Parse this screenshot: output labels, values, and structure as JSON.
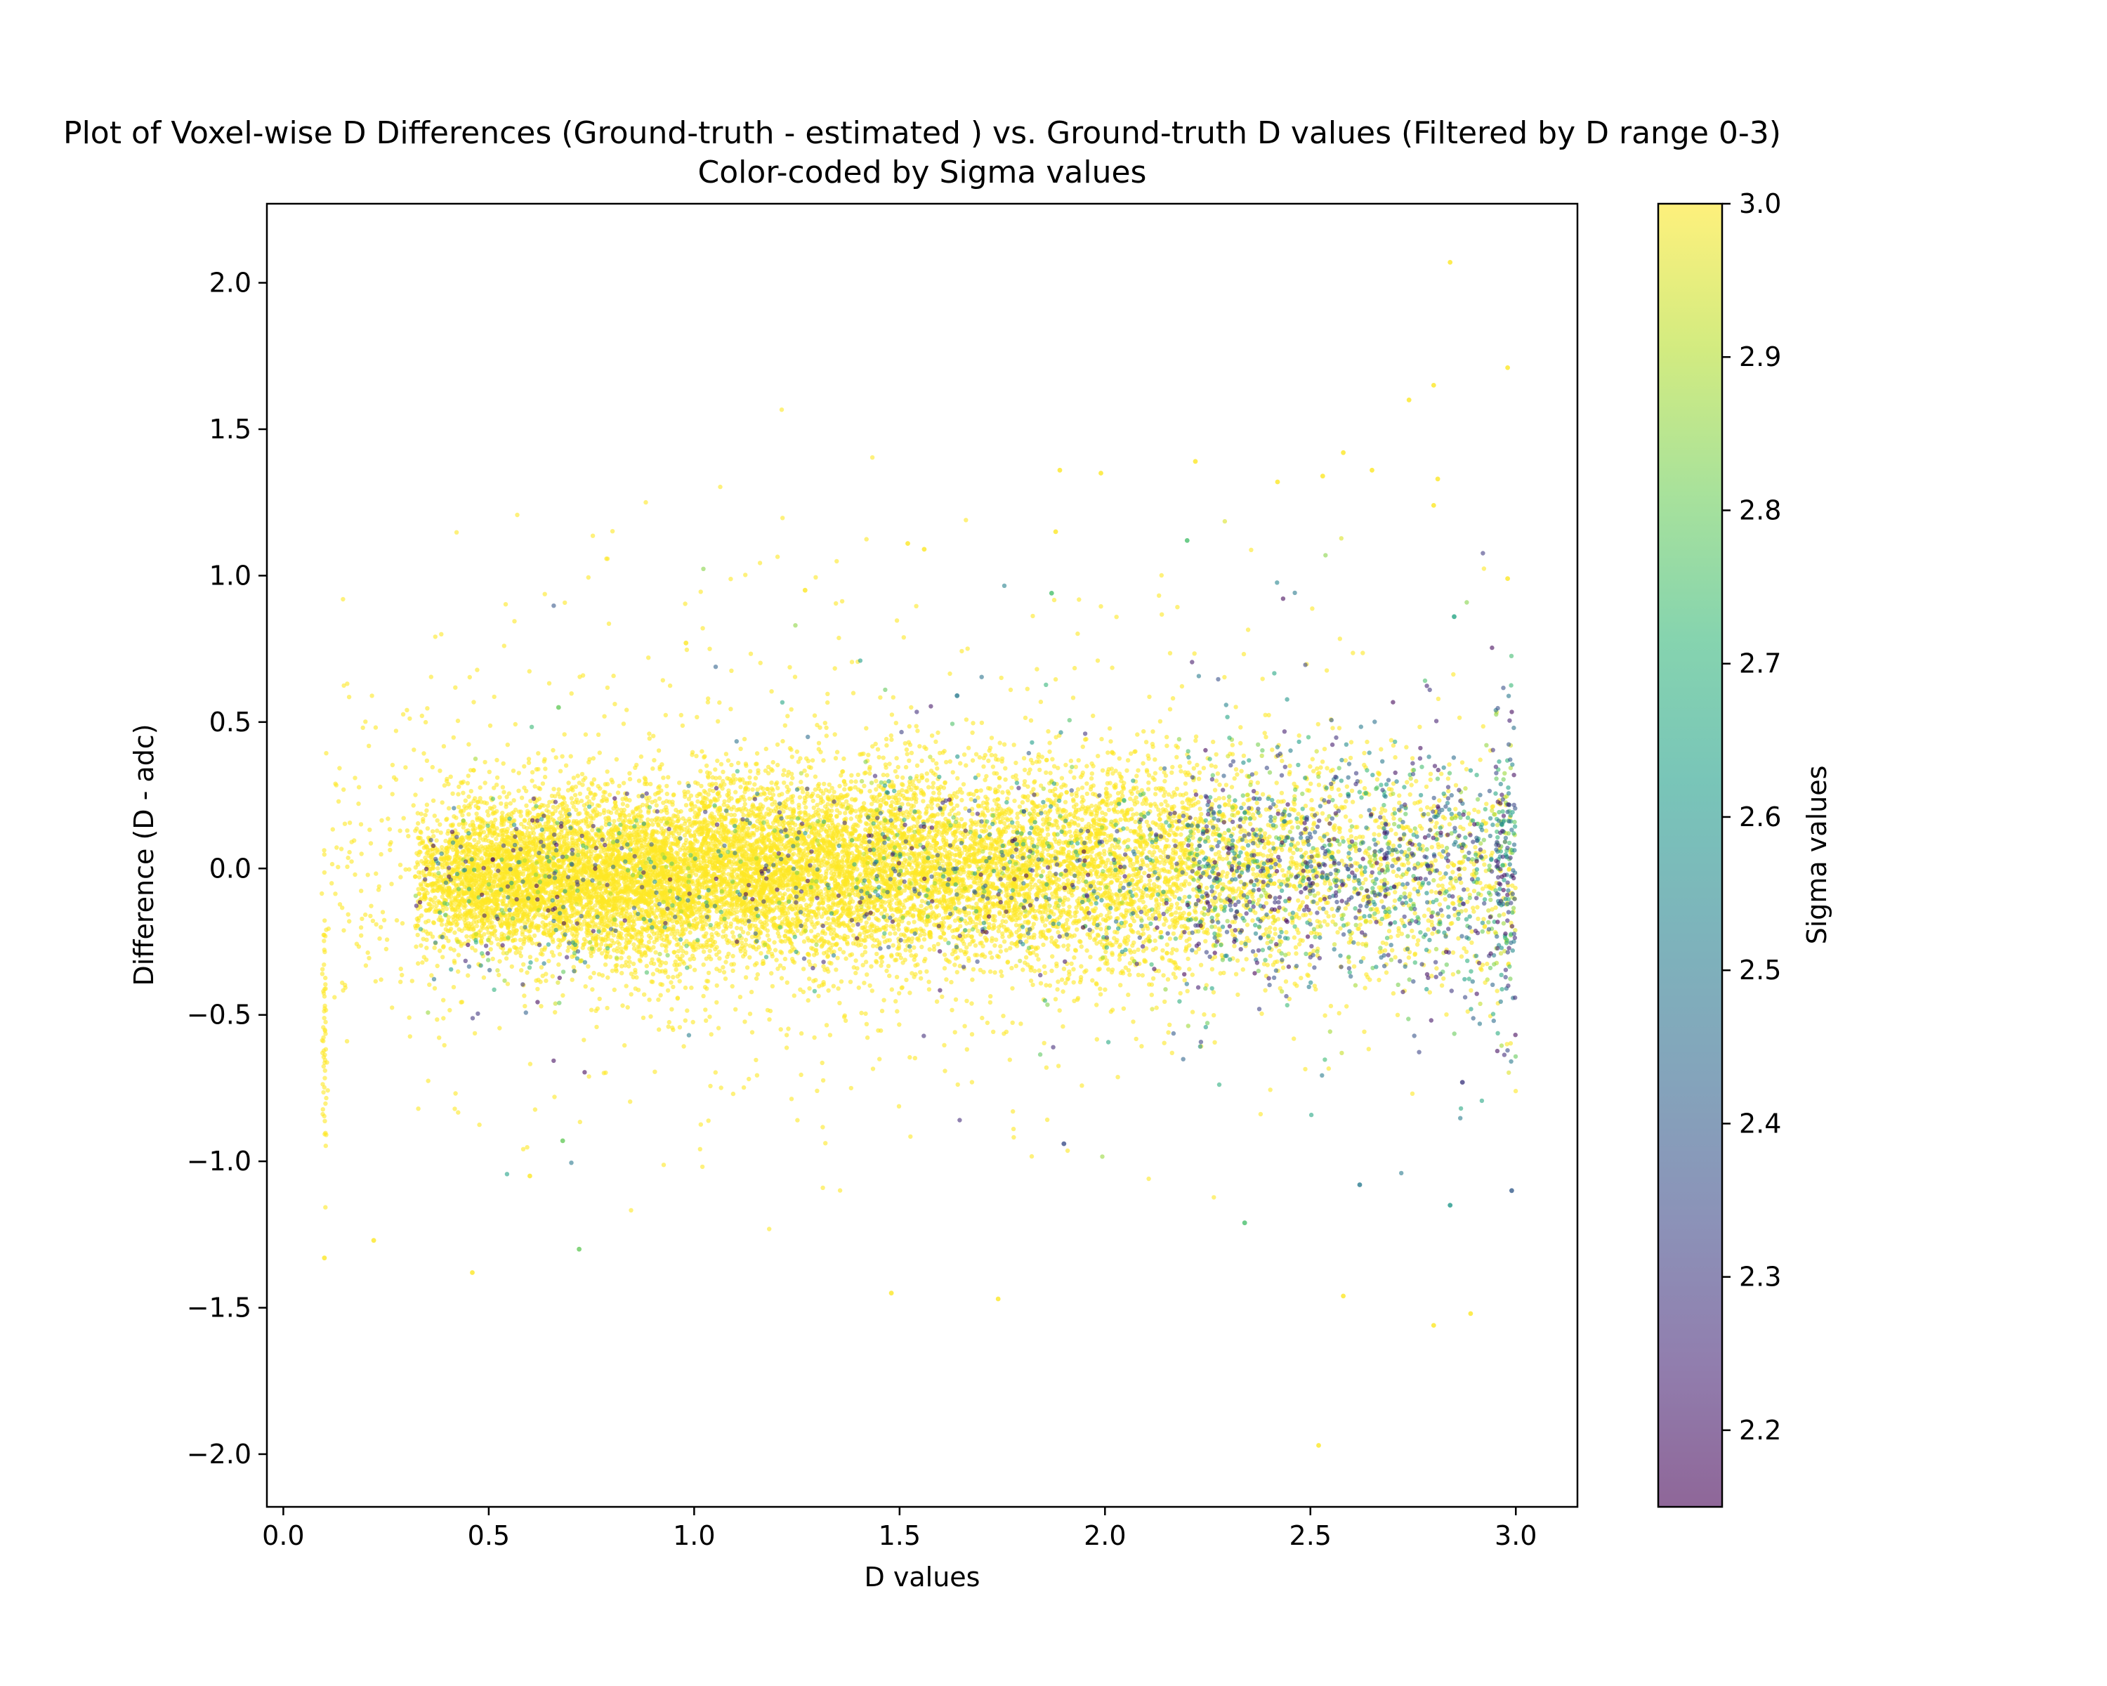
{
  "figure": {
    "title_line1": "Plot of Voxel-wise  D Differences (Ground-truth - estimated ) vs. Ground-truth D values (Filtered by D range 0-3)",
    "title_line2": "Color-coded by Sigma values"
  },
  "chart_data": {
    "type": "scatter",
    "title": "Plot of Voxel-wise  D Differences (Ground-truth - estimated ) vs. Ground-truth D values (Filtered by D range 0-3)\nColor-coded by Sigma values",
    "xlabel": "D values",
    "ylabel": "Difference (D - adc)",
    "xlim": [
      -0.04,
      3.15
    ],
    "ylim": [
      -2.18,
      2.27
    ],
    "xticks": [
      0.0,
      0.5,
      1.0,
      1.5,
      2.0,
      2.5,
      3.0
    ],
    "xtick_labels": [
      "0.0",
      "0.5",
      "1.0",
      "1.5",
      "2.0",
      "2.5",
      "3.0"
    ],
    "yticks": [
      -2.0,
      -1.5,
      -1.0,
      -0.5,
      0.0,
      0.5,
      1.0,
      1.5,
      2.0
    ],
    "ytick_labels": [
      "−2.0",
      "−1.5",
      "−1.0",
      "−0.5",
      "0.0",
      "0.5",
      "1.0",
      "1.5",
      "2.0"
    ],
    "grid": false,
    "colormap": "viridis",
    "marker_alpha": 0.6,
    "colorbar": {
      "label": "Sigma values",
      "range": [
        2.15,
        3.0
      ],
      "ticks": [
        2.2,
        2.3,
        2.4,
        2.5,
        2.6,
        2.7,
        2.8,
        2.9,
        3.0
      ],
      "tick_labels": [
        "2.2",
        "2.3",
        "2.4",
        "2.5",
        "2.6",
        "2.7",
        "2.8",
        "2.9",
        "3.0"
      ],
      "stops": [
        "#440154",
        "#482878",
        "#3e4a89",
        "#31688e",
        "#26828e",
        "#1f9e89",
        "#35b779",
        "#6ece58",
        "#b5de2b",
        "#fde725"
      ]
    },
    "density_summary": {
      "x_range_of_points": [
        0.1,
        3.0
      ],
      "dense_core": {
        "x": [
          0.45,
          1.05
        ],
        "y": [
          -0.45,
          0.35
        ],
        "center": [
          0.75,
          -0.05
        ]
      },
      "low_sigma_region_x": [
        2.3,
        3.0
      ],
      "y_spread_core": [
        -0.6,
        0.6
      ]
    },
    "notable_points": [
      {
        "x": 2.84,
        "y": 2.07,
        "sigma": 3.0
      },
      {
        "x": 2.98,
        "y": 1.71,
        "sigma": 3.0
      },
      {
        "x": 2.8,
        "y": 1.65,
        "sigma": 3.0
      },
      {
        "x": 2.74,
        "y": 1.6,
        "sigma": 3.0
      },
      {
        "x": 2.58,
        "y": 1.42,
        "sigma": 3.0
      },
      {
        "x": 2.22,
        "y": 1.39,
        "sigma": 3.0
      },
      {
        "x": 1.89,
        "y": 1.36,
        "sigma": 3.0
      },
      {
        "x": 1.99,
        "y": 1.35,
        "sigma": 3.0
      },
      {
        "x": 2.53,
        "y": 1.34,
        "sigma": 3.0
      },
      {
        "x": 2.65,
        "y": 1.36,
        "sigma": 3.0
      },
      {
        "x": 2.81,
        "y": 1.33,
        "sigma": 3.0
      },
      {
        "x": 2.42,
        "y": 1.32,
        "sigma": 3.0
      },
      {
        "x": 2.8,
        "y": 1.24,
        "sigma": 3.0
      },
      {
        "x": 1.88,
        "y": 1.15,
        "sigma": 3.0
      },
      {
        "x": 2.2,
        "y": 1.12,
        "sigma": 2.75
      },
      {
        "x": 1.52,
        "y": 1.11,
        "sigma": 3.0
      },
      {
        "x": 1.56,
        "y": 1.09,
        "sigma": 3.0
      },
      {
        "x": 2.85,
        "y": 0.86,
        "sigma": 2.65
      },
      {
        "x": 2.98,
        "y": 0.99,
        "sigma": 3.0
      },
      {
        "x": 1.27,
        "y": 0.95,
        "sigma": 3.0
      },
      {
        "x": 1.87,
        "y": 0.94,
        "sigma": 2.75
      },
      {
        "x": 0.98,
        "y": 0.77,
        "sigma": 3.0
      },
      {
        "x": 0.67,
        "y": 0.55,
        "sigma": 2.8
      },
      {
        "x": 1.64,
        "y": 0.59,
        "sigma": 2.5
      },
      {
        "x": 2.52,
        "y": -1.97,
        "sigma": 3.0
      },
      {
        "x": 2.8,
        "y": -1.56,
        "sigma": 3.0
      },
      {
        "x": 2.89,
        "y": -1.52,
        "sigma": 3.0
      },
      {
        "x": 1.74,
        "y": -1.47,
        "sigma": 3.0
      },
      {
        "x": 2.58,
        "y": -1.46,
        "sigma": 3.0
      },
      {
        "x": 1.48,
        "y": -1.45,
        "sigma": 3.0
      },
      {
        "x": 0.46,
        "y": -1.38,
        "sigma": 3.0
      },
      {
        "x": 0.1,
        "y": -1.33,
        "sigma": 3.0
      },
      {
        "x": 0.72,
        "y": -1.3,
        "sigma": 2.8
      },
      {
        "x": 0.22,
        "y": -1.27,
        "sigma": 3.0
      },
      {
        "x": 2.34,
        "y": -1.21,
        "sigma": 2.75
      },
      {
        "x": 2.84,
        "y": -1.15,
        "sigma": 2.6
      },
      {
        "x": 2.99,
        "y": -1.1,
        "sigma": 2.4
      },
      {
        "x": 2.62,
        "y": -1.08,
        "sigma": 2.5
      },
      {
        "x": 0.6,
        "y": -1.05,
        "sigma": 3.0
      },
      {
        "x": 2.87,
        "y": -0.73,
        "sigma": 2.3
      },
      {
        "x": 1.9,
        "y": -0.94,
        "sigma": 2.35
      },
      {
        "x": 0.68,
        "y": -0.93,
        "sigma": 2.8
      }
    ]
  }
}
